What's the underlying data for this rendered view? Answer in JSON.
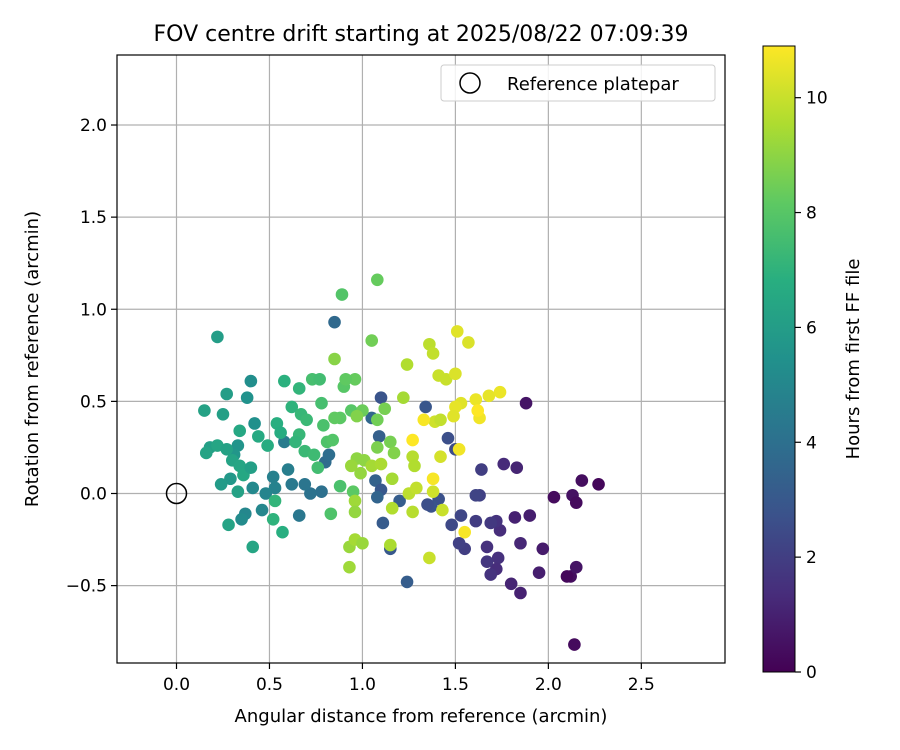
{
  "chart_data": {
    "type": "scatter",
    "title": "FOV centre drift starting at 2025/08/22 07:09:39",
    "xlabel": "Angular distance from reference (arcmin)",
    "ylabel": "Rotation from reference (arcmin)",
    "xlim": [
      -0.32,
      2.95
    ],
    "ylim": [
      -0.92,
      2.38
    ],
    "xticks": [
      0.0,
      0.5,
      1.0,
      1.5,
      2.0,
      2.5
    ],
    "yticks": [
      -0.5,
      0.0,
      0.5,
      1.0,
      1.5,
      2.0
    ],
    "xtick_labels": [
      "0.0",
      "0.5",
      "1.0",
      "1.5",
      "2.0",
      "2.5"
    ],
    "ytick_labels": [
      "−0.5",
      "0.0",
      "0.5",
      "1.0",
      "1.5",
      "2.0"
    ],
    "grid": true,
    "legend": {
      "location": "upper right",
      "entries": [
        {
          "label": "Reference platepar",
          "marker": "open-circle",
          "color": "#000000"
        }
      ]
    },
    "reference_point": {
      "x": 0.0,
      "y": 0.0
    },
    "colorbar": {
      "label": "Hours from first FF file",
      "range": [
        0,
        10.9
      ],
      "ticks": [
        0,
        2,
        4,
        6,
        8,
        10
      ],
      "tick_labels": [
        "0",
        "2",
        "4",
        "6",
        "8",
        "10"
      ],
      "colormap": "viridis"
    },
    "points": [
      {
        "x": 2.14,
        "y": -0.82,
        "h": 0.3
      },
      {
        "x": 2.12,
        "y": -0.45,
        "h": 0.4
      },
      {
        "x": 2.15,
        "y": -0.4,
        "h": 0.6
      },
      {
        "x": 2.1,
        "y": -0.45,
        "h": 0.2
      },
      {
        "x": 2.03,
        "y": -0.02,
        "h": 0.3
      },
      {
        "x": 2.13,
        "y": -0.01,
        "h": 0.5
      },
      {
        "x": 2.15,
        "y": -0.05,
        "h": 0.3
      },
      {
        "x": 2.18,
        "y": 0.07,
        "h": 0.4
      },
      {
        "x": 2.27,
        "y": 0.05,
        "h": 0.2
      },
      {
        "x": 1.88,
        "y": 0.49,
        "h": 0.6
      },
      {
        "x": 1.95,
        "y": -0.43,
        "h": 0.9
      },
      {
        "x": 1.97,
        "y": -0.3,
        "h": 0.8
      },
      {
        "x": 1.85,
        "y": -0.54,
        "h": 1.0
      },
      {
        "x": 1.8,
        "y": -0.49,
        "h": 1.1
      },
      {
        "x": 1.85,
        "y": -0.27,
        "h": 1.2
      },
      {
        "x": 1.82,
        "y": -0.13,
        "h": 1.0
      },
      {
        "x": 1.9,
        "y": -0.12,
        "h": 0.9
      },
      {
        "x": 1.83,
        "y": 0.14,
        "h": 1.1
      },
      {
        "x": 1.76,
        "y": 0.16,
        "h": 1.3
      },
      {
        "x": 1.74,
        "y": -0.2,
        "h": 1.4
      },
      {
        "x": 1.72,
        "y": -0.15,
        "h": 1.6
      },
      {
        "x": 1.73,
        "y": -0.35,
        "h": 1.5
      },
      {
        "x": 1.72,
        "y": -0.41,
        "h": 1.4
      },
      {
        "x": 1.69,
        "y": -0.44,
        "h": 1.6
      },
      {
        "x": 1.67,
        "y": -0.37,
        "h": 1.7
      },
      {
        "x": 1.67,
        "y": -0.29,
        "h": 1.5
      },
      {
        "x": 1.69,
        "y": -0.16,
        "h": 1.8
      },
      {
        "x": 1.61,
        "y": -0.15,
        "h": 1.9
      },
      {
        "x": 1.64,
        "y": 0.13,
        "h": 2.0
      },
      {
        "x": 1.63,
        "y": -0.01,
        "h": 2.1
      },
      {
        "x": 1.61,
        "y": -0.01,
        "h": 2.2
      },
      {
        "x": 1.55,
        "y": -0.3,
        "h": 2.0
      },
      {
        "x": 1.52,
        "y": -0.27,
        "h": 2.1
      },
      {
        "x": 1.53,
        "y": -0.12,
        "h": 2.3
      },
      {
        "x": 1.48,
        "y": -0.17,
        "h": 2.4
      },
      {
        "x": 1.5,
        "y": 0.24,
        "h": 2.5
      },
      {
        "x": 1.46,
        "y": 0.3,
        "h": 2.6
      },
      {
        "x": 1.41,
        "y": -0.03,
        "h": 2.7
      },
      {
        "x": 1.37,
        "y": -0.07,
        "h": 2.8
      },
      {
        "x": 1.35,
        "y": -0.06,
        "h": 2.6
      },
      {
        "x": 1.34,
        "y": 0.47,
        "h": 2.9
      },
      {
        "x": 1.24,
        "y": -0.48,
        "h": 3.2
      },
      {
        "x": 1.15,
        "y": -0.3,
        "h": 3.0
      },
      {
        "x": 1.11,
        "y": -0.16,
        "h": 3.1
      },
      {
        "x": 1.1,
        "y": 0.52,
        "h": 2.8
      },
      {
        "x": 1.09,
        "y": 0.31,
        "h": 3.3
      },
      {
        "x": 1.07,
        "y": 0.07,
        "h": 3.4
      },
      {
        "x": 1.1,
        "y": 0.02,
        "h": 3.0
      },
      {
        "x": 1.08,
        "y": -0.02,
        "h": 3.5
      },
      {
        "x": 1.05,
        "y": 0.41,
        "h": 3.6
      },
      {
        "x": 1.2,
        "y": -0.04,
        "h": 3.2
      },
      {
        "x": 0.85,
        "y": 0.93,
        "h": 3.7
      },
      {
        "x": 0.8,
        "y": 0.17,
        "h": 3.8
      },
      {
        "x": 0.82,
        "y": 0.21,
        "h": 3.9
      },
      {
        "x": 0.78,
        "y": 0.01,
        "h": 4.0
      },
      {
        "x": 0.72,
        "y": 0.0,
        "h": 4.1
      },
      {
        "x": 0.69,
        "y": 0.05,
        "h": 4.2
      },
      {
        "x": 0.66,
        "y": -0.12,
        "h": 4.3
      },
      {
        "x": 0.62,
        "y": 0.05,
        "h": 4.4
      },
      {
        "x": 0.58,
        "y": 0.28,
        "h": 4.5
      },
      {
        "x": 0.6,
        "y": 0.13,
        "h": 4.6
      },
      {
        "x": 0.52,
        "y": 0.09,
        "h": 4.7
      },
      {
        "x": 0.53,
        "y": 0.03,
        "h": 4.8
      },
      {
        "x": 0.48,
        "y": 0.0,
        "h": 4.9
      },
      {
        "x": 0.46,
        "y": -0.09,
        "h": 5.0
      },
      {
        "x": 0.41,
        "y": 0.03,
        "h": 5.1
      },
      {
        "x": 0.37,
        "y": -0.11,
        "h": 5.0
      },
      {
        "x": 0.35,
        "y": -0.14,
        "h": 5.2
      },
      {
        "x": 0.4,
        "y": 0.61,
        "h": 5.3
      },
      {
        "x": 0.42,
        "y": 0.38,
        "h": 5.4
      },
      {
        "x": 0.38,
        "y": 0.52,
        "h": 5.5
      },
      {
        "x": 0.33,
        "y": 0.26,
        "h": 5.6
      },
      {
        "x": 0.31,
        "y": 0.21,
        "h": 5.7
      },
      {
        "x": 0.29,
        "y": 0.08,
        "h": 5.8
      },
      {
        "x": 0.24,
        "y": 0.05,
        "h": 5.9
      },
      {
        "x": 0.22,
        "y": 0.85,
        "h": 6.0
      },
      {
        "x": 0.27,
        "y": 0.54,
        "h": 6.0
      },
      {
        "x": 0.25,
        "y": 0.43,
        "h": 6.1
      },
      {
        "x": 0.15,
        "y": 0.45,
        "h": 6.2
      },
      {
        "x": 0.18,
        "y": 0.25,
        "h": 6.1
      },
      {
        "x": 0.16,
        "y": 0.22,
        "h": 6.3
      },
      {
        "x": 0.22,
        "y": 0.26,
        "h": 6.4
      },
      {
        "x": 0.27,
        "y": 0.24,
        "h": 6.2
      },
      {
        "x": 0.3,
        "y": 0.18,
        "h": 6.3
      },
      {
        "x": 0.34,
        "y": 0.15,
        "h": 6.4
      },
      {
        "x": 0.36,
        "y": 0.1,
        "h": 6.5
      },
      {
        "x": 0.4,
        "y": 0.14,
        "h": 6.1
      },
      {
        "x": 0.33,
        "y": 0.01,
        "h": 6.2
      },
      {
        "x": 0.28,
        "y": -0.17,
        "h": 6.3
      },
      {
        "x": 0.41,
        "y": -0.29,
        "h": 6.4
      },
      {
        "x": 0.34,
        "y": 0.34,
        "h": 6.5
      },
      {
        "x": 0.44,
        "y": 0.31,
        "h": 6.6
      },
      {
        "x": 0.49,
        "y": 0.26,
        "h": 6.7
      },
      {
        "x": 0.54,
        "y": 0.38,
        "h": 6.8
      },
      {
        "x": 0.58,
        "y": 0.61,
        "h": 6.9
      },
      {
        "x": 0.56,
        "y": 0.33,
        "h": 6.7
      },
      {
        "x": 0.57,
        "y": -0.21,
        "h": 6.8
      },
      {
        "x": 0.52,
        "y": -0.14,
        "h": 7.0
      },
      {
        "x": 0.53,
        "y": -0.04,
        "h": 7.1
      },
      {
        "x": 0.62,
        "y": 0.47,
        "h": 7.0
      },
      {
        "x": 0.66,
        "y": 0.57,
        "h": 7.1
      },
      {
        "x": 0.67,
        "y": 0.43,
        "h": 7.2
      },
      {
        "x": 0.7,
        "y": 0.4,
        "h": 7.3
      },
      {
        "x": 0.66,
        "y": 0.32,
        "h": 7.2
      },
      {
        "x": 0.64,
        "y": 0.28,
        "h": 7.1
      },
      {
        "x": 0.69,
        "y": 0.23,
        "h": 7.3
      },
      {
        "x": 0.74,
        "y": 0.21,
        "h": 7.4
      },
      {
        "x": 0.76,
        "y": 0.14,
        "h": 7.5
      },
      {
        "x": 0.73,
        "y": 0.62,
        "h": 7.6
      },
      {
        "x": 0.77,
        "y": 0.62,
        "h": 7.5
      },
      {
        "x": 0.78,
        "y": 0.49,
        "h": 7.6
      },
      {
        "x": 0.79,
        "y": 0.37,
        "h": 7.7
      },
      {
        "x": 0.81,
        "y": 0.28,
        "h": 7.8
      },
      {
        "x": 0.84,
        "y": 0.29,
        "h": 7.9
      },
      {
        "x": 0.88,
        "y": 0.04,
        "h": 7.7
      },
      {
        "x": 0.83,
        "y": -0.11,
        "h": 7.8
      },
      {
        "x": 0.89,
        "y": 1.08,
        "h": 7.9
      },
      {
        "x": 0.9,
        "y": 0.58,
        "h": 8.0
      },
      {
        "x": 0.88,
        "y": 0.41,
        "h": 8.1
      },
      {
        "x": 0.85,
        "y": 0.41,
        "h": 8.2
      },
      {
        "x": 0.94,
        "y": 0.45,
        "h": 8.0
      },
      {
        "x": 0.96,
        "y": 0.62,
        "h": 8.3
      },
      {
        "x": 0.91,
        "y": 0.62,
        "h": 8.2
      },
      {
        "x": 0.95,
        "y": 0.01,
        "h": 8.1
      },
      {
        "x": 1.0,
        "y": 0.45,
        "h": 8.4
      },
      {
        "x": 1.05,
        "y": 0.83,
        "h": 8.5
      },
      {
        "x": 1.08,
        "y": 1.16,
        "h": 8.3
      },
      {
        "x": 1.08,
        "y": 0.4,
        "h": 8.5
      },
      {
        "x": 1.12,
        "y": 0.46,
        "h": 8.6
      },
      {
        "x": 1.08,
        "y": 0.25,
        "h": 8.7
      },
      {
        "x": 1.15,
        "y": 0.28,
        "h": 8.6
      },
      {
        "x": 1.17,
        "y": 0.22,
        "h": 8.8
      },
      {
        "x": 0.85,
        "y": 0.73,
        "h": 8.9
      },
      {
        "x": 0.97,
        "y": 0.42,
        "h": 8.8
      },
      {
        "x": 0.97,
        "y": 0.19,
        "h": 9.0
      },
      {
        "x": 0.99,
        "y": 0.11,
        "h": 9.1
      },
      {
        "x": 1.01,
        "y": 0.18,
        "h": 9.0
      },
      {
        "x": 0.94,
        "y": 0.15,
        "h": 9.2
      },
      {
        "x": 0.96,
        "y": -0.04,
        "h": 9.3
      },
      {
        "x": 0.96,
        "y": -0.1,
        "h": 9.1
      },
      {
        "x": 0.93,
        "y": -0.29,
        "h": 9.2
      },
      {
        "x": 0.96,
        "y": -0.25,
        "h": 9.4
      },
      {
        "x": 0.93,
        "y": -0.4,
        "h": 9.3
      },
      {
        "x": 1.0,
        "y": -0.27,
        "h": 9.2
      },
      {
        "x": 1.05,
        "y": 0.15,
        "h": 9.4
      },
      {
        "x": 1.1,
        "y": 0.16,
        "h": 9.5
      },
      {
        "x": 1.16,
        "y": 0.08,
        "h": 9.4
      },
      {
        "x": 1.16,
        "y": -0.08,
        "h": 9.6
      },
      {
        "x": 1.15,
        "y": -0.28,
        "h": 9.5
      },
      {
        "x": 1.22,
        "y": 0.52,
        "h": 9.4
      },
      {
        "x": 1.24,
        "y": 0.7,
        "h": 9.6
      },
      {
        "x": 1.27,
        "y": 0.2,
        "h": 9.7
      },
      {
        "x": 1.28,
        "y": 0.15,
        "h": 9.6
      },
      {
        "x": 1.25,
        "y": 0.0,
        "h": 9.8
      },
      {
        "x": 1.27,
        "y": -0.1,
        "h": 9.7
      },
      {
        "x": 1.29,
        "y": 0.03,
        "h": 9.9
      },
      {
        "x": 1.36,
        "y": 0.81,
        "h": 9.8
      },
      {
        "x": 1.38,
        "y": 0.76,
        "h": 9.9
      },
      {
        "x": 1.41,
        "y": 0.64,
        "h": 10.0
      },
      {
        "x": 1.45,
        "y": 0.62,
        "h": 10.0
      },
      {
        "x": 1.39,
        "y": 0.39,
        "h": 10.1
      },
      {
        "x": 1.42,
        "y": 0.4,
        "h": 9.9
      },
      {
        "x": 1.36,
        "y": -0.35,
        "h": 10.0
      },
      {
        "x": 1.38,
        "y": 0.01,
        "h": 10.1
      },
      {
        "x": 1.42,
        "y": 0.2,
        "h": 10.2
      },
      {
        "x": 1.43,
        "y": -0.09,
        "h": 10.0
      },
      {
        "x": 1.5,
        "y": 0.65,
        "h": 10.3
      },
      {
        "x": 1.57,
        "y": 0.82,
        "h": 10.3
      },
      {
        "x": 1.51,
        "y": 0.88,
        "h": 10.4
      },
      {
        "x": 1.53,
        "y": 0.49,
        "h": 10.4
      },
      {
        "x": 1.5,
        "y": 0.47,
        "h": 10.5
      },
      {
        "x": 1.49,
        "y": 0.42,
        "h": 10.4
      },
      {
        "x": 1.61,
        "y": 0.51,
        "h": 10.6
      },
      {
        "x": 1.63,
        "y": 0.41,
        "h": 10.7
      },
      {
        "x": 1.68,
        "y": 0.53,
        "h": 10.5
      },
      {
        "x": 1.74,
        "y": 0.55,
        "h": 10.6
      },
      {
        "x": 1.52,
        "y": 0.24,
        "h": 10.7
      },
      {
        "x": 1.55,
        "y": -0.21,
        "h": 10.8
      },
      {
        "x": 1.33,
        "y": 0.4,
        "h": 10.8
      },
      {
        "x": 1.62,
        "y": 0.45,
        "h": 10.9
      },
      {
        "x": 1.27,
        "y": 0.29,
        "h": 10.9
      },
      {
        "x": 1.38,
        "y": 0.08,
        "h": 10.8
      }
    ]
  }
}
